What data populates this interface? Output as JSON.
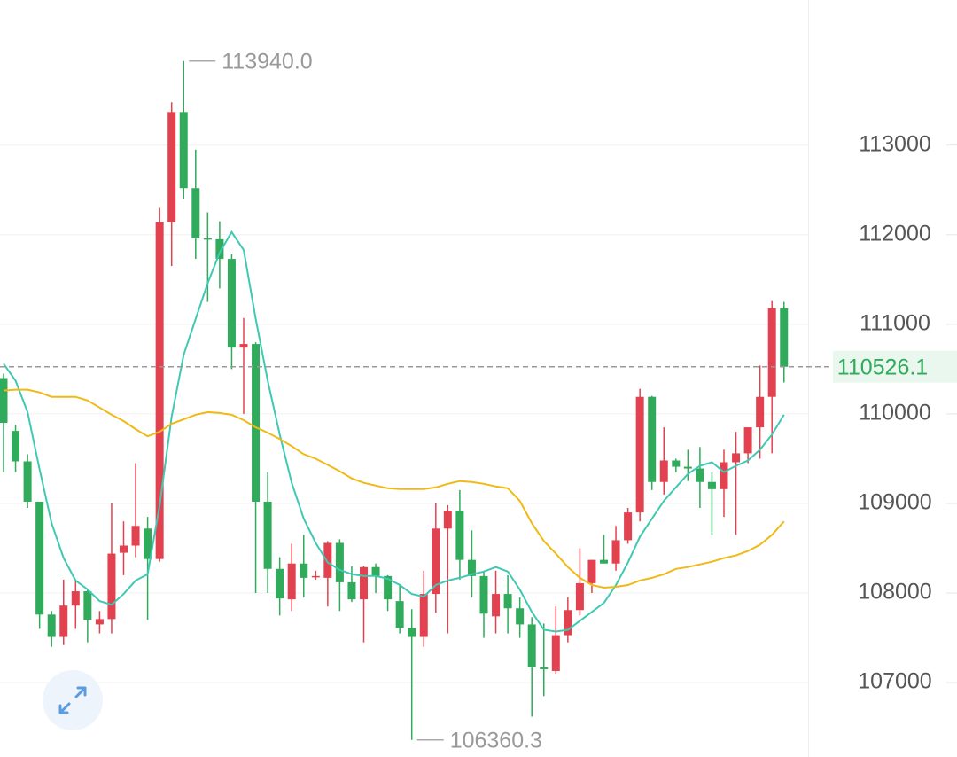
{
  "chart_data": {
    "type": "candlestick",
    "ylim": [
      106170,
      114620
    ],
    "yticks": [
      107000,
      108000,
      109000,
      110000,
      111000,
      112000,
      113000
    ],
    "grid": true,
    "up_color": "#e2424f",
    "down_color": "#2fab5b",
    "open": [
      110400,
      109810,
      109470,
      109020,
      107760,
      107510,
      107860,
      108020,
      107650,
      107710,
      108450,
      108530,
      108720,
      108380,
      112140,
      113370,
      112520,
      111960,
      111950,
      111730,
      110740,
      110780,
      109020,
      108270,
      107930,
      108330,
      108180,
      108170,
      108560,
      108120,
      107930,
      108290,
      108190,
      107910,
      107610,
      107510,
      107990,
      108720,
      108920,
      108370,
      108190,
      107740,
      107990,
      107830,
      107650,
      107170,
      107130,
      107530,
      107810,
      108110,
      108370,
      108330,
      108590,
      108900,
      110190,
      109240,
      109480,
      109410,
      109390,
      109240,
      109160,
      109460,
      109560,
      109850,
      110190,
      111180
    ],
    "high": [
      110450,
      109880,
      109550,
      109020,
      107800,
      108150,
      108150,
      108050,
      107800,
      109000,
      108800,
      109450,
      108850,
      112300,
      113480,
      113940,
      112950,
      112250,
      112150,
      111780,
      111070,
      110800,
      109350,
      108400,
      108550,
      108650,
      108250,
      108580,
      108600,
      108300,
      108300,
      108330,
      108200,
      108100,
      107820,
      108250,
      109000,
      108980,
      109150,
      108700,
      108250,
      108250,
      108200,
      107950,
      107730,
      107660,
      107850,
      107950,
      108500,
      108370,
      108650,
      108750,
      108950,
      110280,
      110200,
      109850,
      109500,
      109600,
      109630,
      109350,
      109600,
      109800,
      109850,
      110540,
      111260,
      111250
    ],
    "low": [
      109350,
      109350,
      108950,
      107600,
      107400,
      107420,
      107600,
      107450,
      107550,
      107550,
      108200,
      108400,
      107700,
      108350,
      111650,
      112400,
      111730,
      111250,
      111400,
      110500,
      110000,
      108000,
      108000,
      107750,
      107800,
      107950,
      108150,
      107850,
      107800,
      107900,
      107450,
      108000,
      107800,
      107550,
      106360.3,
      107400,
      107780,
      107550,
      108150,
      107950,
      107500,
      107550,
      107550,
      107500,
      106620,
      106850,
      107100,
      107450,
      107750,
      108000,
      108330,
      108250,
      108550,
      108800,
      109150,
      109100,
      109350,
      109250,
      108950,
      108650,
      108850,
      108650,
      109450,
      109500,
      109560,
      110350
    ],
    "close": [
      109900,
      109470,
      109020,
      107760,
      107510,
      107860,
      108020,
      107700,
      107710,
      108440,
      108530,
      108750,
      108380,
      112140,
      113370,
      112520,
      111960,
      111950,
      111730,
      110740,
      110780,
      109020,
      108270,
      107940,
      108330,
      108170,
      108190,
      108560,
      108120,
      107930,
      108290,
      108190,
      107930,
      107610,
      107510,
      107990,
      108720,
      108920,
      108370,
      108190,
      107770,
      107990,
      107830,
      107650,
      107170,
      107150,
      107530,
      107810,
      108110,
      108370,
      108330,
      108590,
      108900,
      110190,
      109240,
      109480,
      109410,
      109390,
      109240,
      109160,
      109460,
      109560,
      109850,
      110190,
      111180,
      110526.1
    ],
    "lines": [
      {
        "color": "#3fc9b2",
        "values": [
          110560,
          110370,
          110020,
          109380,
          108780,
          108390,
          108140,
          108040,
          107910,
          107870,
          107990,
          108140,
          108210,
          108980,
          109970,
          110660,
          111060,
          111460,
          111800,
          112030,
          111830,
          111060,
          110370,
          109770,
          109230,
          108830,
          108560,
          108340,
          108260,
          108210,
          108190,
          108190,
          108160,
          108090,
          107990,
          107960,
          108090,
          108140,
          108170,
          108210,
          108240,
          108290,
          108240,
          108040,
          107790,
          107590,
          107570,
          107590,
          107690,
          107790,
          107890,
          108090,
          108340,
          108630,
          108830,
          109030,
          109180,
          109330,
          109420,
          109460,
          109350,
          109420,
          109480,
          109600,
          109770,
          109990
        ]
      },
      {
        "color": "#f0b915",
        "values": [
          110260,
          110270,
          110270,
          110240,
          110190,
          110190,
          110190,
          110150,
          110070,
          109990,
          109920,
          109830,
          109750,
          109800,
          109890,
          109940,
          109990,
          110020,
          110010,
          109990,
          109930,
          109850,
          109790,
          109720,
          109640,
          109550,
          109500,
          109430,
          109360,
          109280,
          109230,
          109200,
          109170,
          109160,
          109160,
          109160,
          109180,
          109220,
          109250,
          109240,
          109220,
          109190,
          109170,
          109030,
          108780,
          108580,
          108440,
          108290,
          108170,
          108090,
          108060,
          108070,
          108090,
          108140,
          108170,
          108210,
          108270,
          108290,
          108320,
          108350,
          108390,
          108420,
          108470,
          108540,
          108650,
          108800
        ]
      }
    ],
    "last_price": 110526.1,
    "annotations": [
      {
        "value": 113940,
        "label": "113940.0"
      },
      {
        "value": 106360.3,
        "label": "106360.3"
      }
    ]
  }
}
